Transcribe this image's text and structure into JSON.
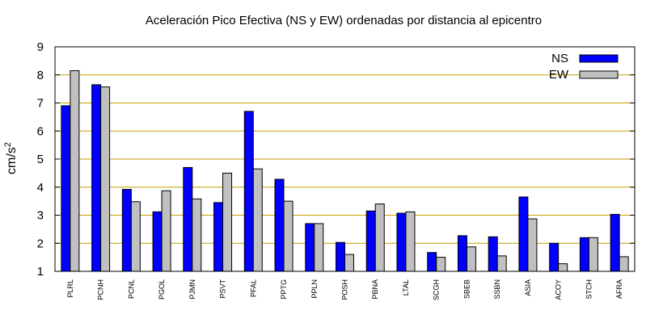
{
  "chart_data": {
    "type": "bar",
    "title": "Aceleración Pico Efectiva (NS y EW) ordenadas por distancia al epicentro",
    "xlabel": "",
    "ylabel": "cm/s",
    "ylabel_sup": "2",
    "ylim": [
      1,
      9
    ],
    "yticks": [
      1,
      2,
      3,
      4,
      5,
      6,
      7,
      8,
      9
    ],
    "grid": "horizontal",
    "legend_position": "top-right",
    "categories": [
      "PLRL",
      "PCNH",
      "PCNL",
      "PGOL",
      "PJMN",
      "PSVT",
      "PFAL",
      "PPTG",
      "PPLN",
      "POSH",
      "PBNA",
      "LTAL",
      "SCGH",
      "SBEB",
      "SSBN",
      "ASIA",
      "ACOY",
      "STCH",
      "AFRA"
    ],
    "series": [
      {
        "name": "NS",
        "color": "#0000ff",
        "values": [
          6.9,
          7.65,
          3.92,
          3.12,
          4.7,
          3.45,
          6.7,
          4.28,
          2.7,
          2.03,
          3.15,
          3.07,
          1.67,
          2.27,
          2.23,
          3.65,
          2.0,
          2.2,
          3.03
        ]
      },
      {
        "name": "EW",
        "color": "#c0c0c0",
        "values": [
          8.15,
          7.57,
          3.48,
          3.87,
          3.58,
          4.5,
          4.65,
          3.5,
          2.7,
          1.6,
          3.4,
          3.12,
          1.5,
          1.87,
          1.55,
          2.87,
          1.27,
          2.2,
          1.52
        ]
      }
    ],
    "gridline_color": "#c8a000"
  }
}
